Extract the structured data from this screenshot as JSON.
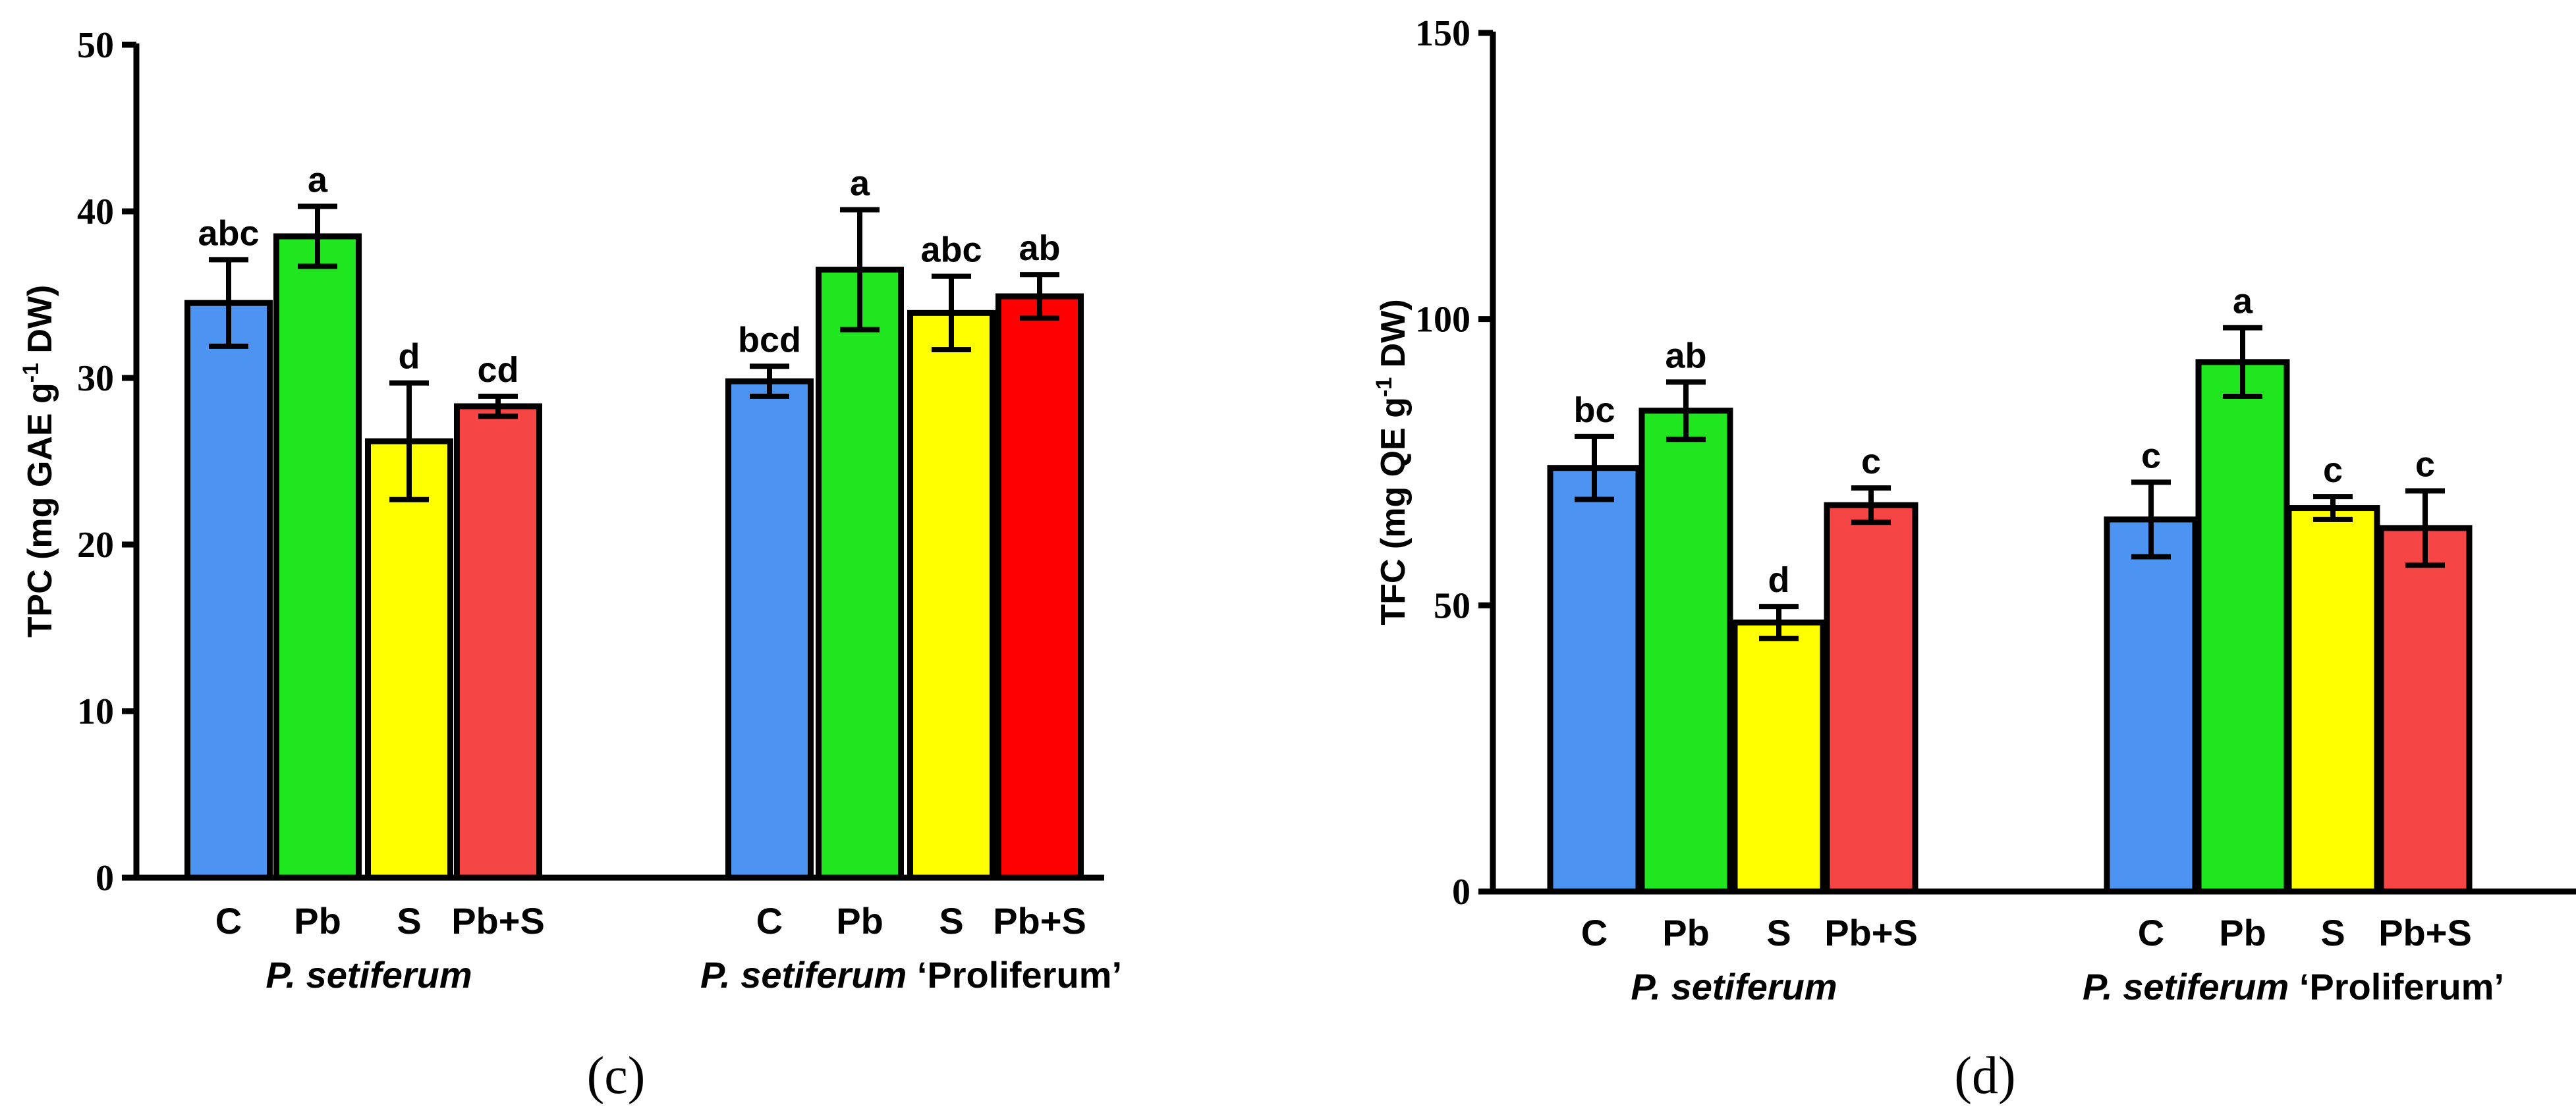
{
  "chart_data": [
    {
      "type": "bar",
      "panel_label": "(c)",
      "ylabel_parts": [
        "TPC (mg GAE g",
        "-1",
        " DW)"
      ],
      "ylim": [
        0,
        50
      ],
      "yticks": [
        0,
        10,
        20,
        30,
        40,
        50
      ],
      "groups": [
        {
          "name": "P. setiferum",
          "name_suffix": "",
          "categories": [
            "C",
            "Pb",
            "S",
            "Pb+S"
          ],
          "values": [
            34.5,
            38.5,
            26.2,
            28.3
          ],
          "errors": [
            2.6,
            1.8,
            3.5,
            0.6
          ],
          "letters": [
            "abc",
            "a",
            "d",
            "cd"
          ],
          "colors": [
            "#4d94f2",
            "#1fe61f",
            "#ffff00",
            "#f54545"
          ]
        },
        {
          "name": "P. setiferum",
          "name_suffix": " ‘Proliferum’",
          "categories": [
            "C",
            "Pb",
            "S",
            "Pb+S"
          ],
          "values": [
            29.8,
            36.5,
            33.9,
            34.9
          ],
          "errors": [
            0.9,
            3.6,
            2.2,
            1.3
          ],
          "letters": [
            "bcd",
            "a",
            "abc",
            "ab"
          ],
          "colors": [
            "#4d94f2",
            "#1fe61f",
            "#ffff00",
            "#ff0000"
          ]
        }
      ]
    },
    {
      "type": "bar",
      "panel_label": "(d)",
      "ylabel_parts": [
        "TFC (mg QE g",
        "-1",
        " DW)"
      ],
      "ylim": [
        0,
        150
      ],
      "yticks": [
        0,
        50,
        100,
        150
      ],
      "groups": [
        {
          "name": "P. setiferum",
          "name_suffix": "",
          "categories": [
            "C",
            "Pb",
            "S",
            "Pb+S"
          ],
          "values": [
            74.0,
            84.0,
            47.0,
            67.5
          ],
          "errors": [
            5.5,
            5.0,
            2.8,
            3.0
          ],
          "letters": [
            "bc",
            "ab",
            "d",
            "c"
          ],
          "colors": [
            "#4d94f2",
            "#1fe61f",
            "#ffff00",
            "#f54545"
          ]
        },
        {
          "name": "P. setiferum",
          "name_suffix": "  ‘Proliferum’",
          "categories": [
            "C",
            "Pb",
            "S",
            "Pb+S"
          ],
          "values": [
            65.0,
            92.5,
            67.0,
            63.5
          ],
          "errors": [
            6.5,
            6.0,
            2.0,
            6.5
          ],
          "letters": [
            "c",
            "a",
            "c",
            "c"
          ],
          "colors": [
            "#4d94f2",
            "#1fe61f",
            "#ffff00",
            "#f54545"
          ]
        }
      ]
    }
  ]
}
